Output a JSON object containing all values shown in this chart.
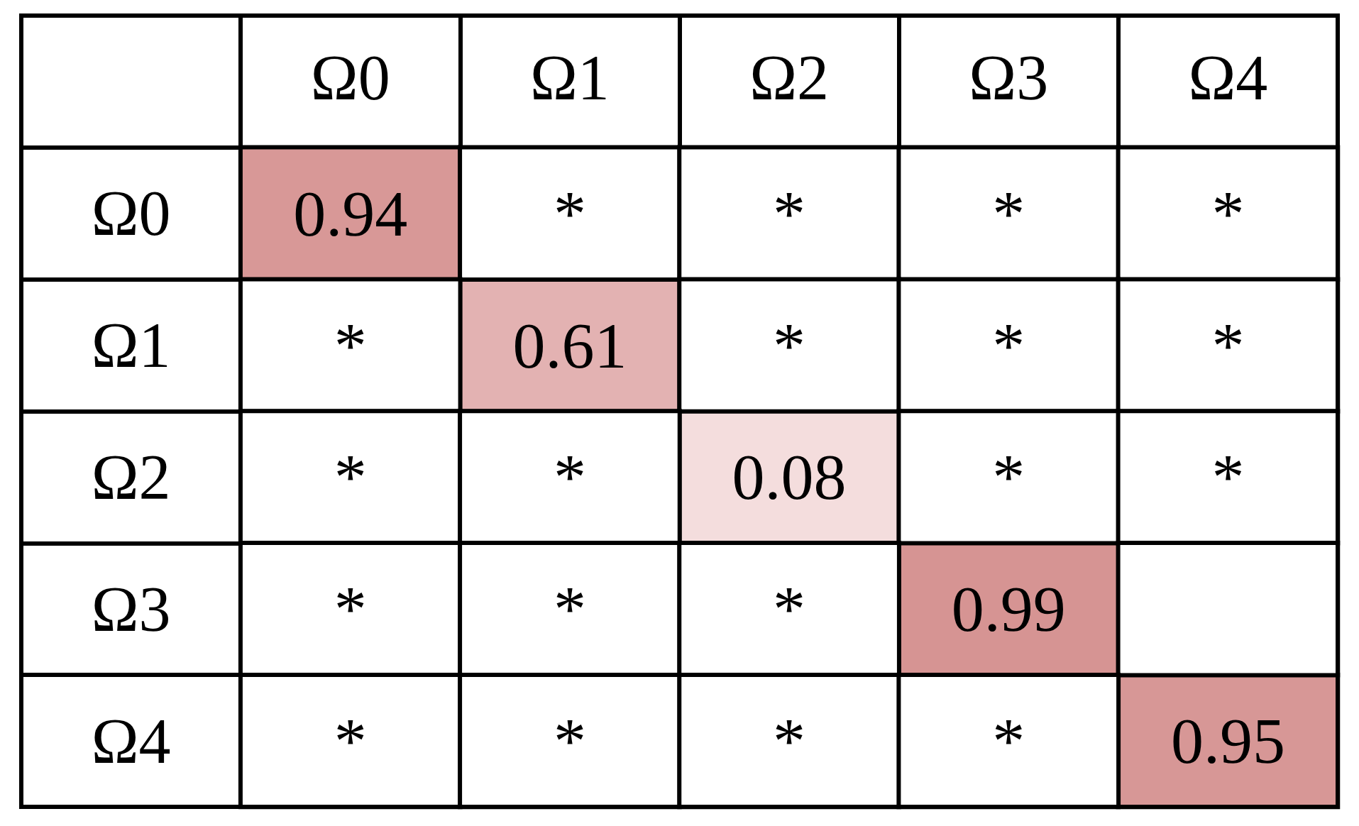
{
  "chart_data": {
    "type": "heatmap",
    "categories": [
      "Ω0",
      "Ω1",
      "Ω2",
      "Ω3",
      "Ω4"
    ],
    "y_categories": [
      "Ω0",
      "Ω1",
      "Ω2",
      "Ω3",
      "Ω4"
    ],
    "cells": [
      [
        0.94,
        null,
        null,
        null,
        null
      ],
      [
        null,
        0.61,
        null,
        null,
        null
      ],
      [
        null,
        null,
        0.08,
        null,
        null
      ],
      [
        null,
        null,
        null,
        0.99,
        null
      ],
      [
        null,
        null,
        null,
        null,
        0.95
      ]
    ],
    "cell_labels": [
      [
        "0.94",
        "*",
        "*",
        "*",
        "*"
      ],
      [
        "*",
        "0.61",
        "*",
        "*",
        "*"
      ],
      [
        "*",
        "*",
        "0.08",
        "*",
        "*"
      ],
      [
        "*",
        "*",
        "*",
        "0.99",
        null
      ],
      [
        "*",
        "*",
        "*",
        "*",
        "0.95"
      ]
    ]
  }
}
